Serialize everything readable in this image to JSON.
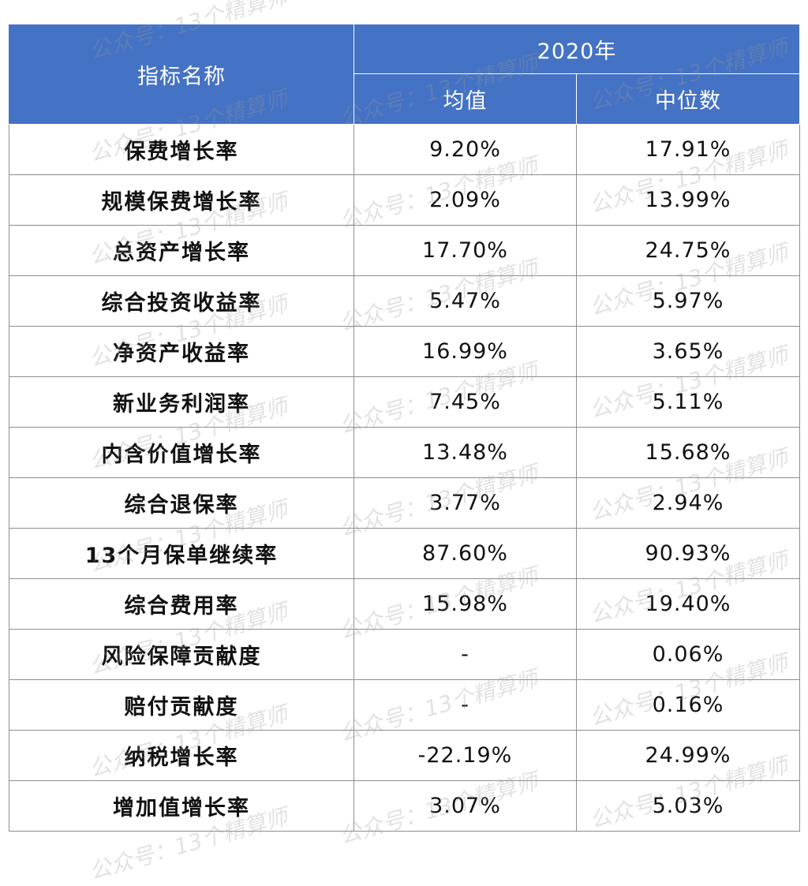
{
  "table": {
    "header": {
      "name_col": "指标名称",
      "year": "2020年",
      "mean": "均值",
      "median": "中位数"
    },
    "rows": [
      {
        "name": "保费增长率",
        "mean": "9.20%",
        "median": "17.91%"
      },
      {
        "name": "规模保费增长率",
        "mean": "2.09%",
        "median": "13.99%"
      },
      {
        "name": "总资产增长率",
        "mean": "17.70%",
        "median": "24.75%"
      },
      {
        "name": "综合投资收益率",
        "mean": "5.47%",
        "median": "5.97%"
      },
      {
        "name": "净资产收益率",
        "mean": "16.99%",
        "median": "3.65%"
      },
      {
        "name": "新业务利润率",
        "mean": "7.45%",
        "median": "5.11%"
      },
      {
        "name": "内含价值增长率",
        "mean": "13.48%",
        "median": "15.68%"
      },
      {
        "name": "综合退保率",
        "mean": "3.77%",
        "median": "2.94%"
      },
      {
        "name": "13个月保单继续率",
        "mean": "87.60%",
        "median": "90.93%"
      },
      {
        "name": "综合费用率",
        "mean": "15.98%",
        "median": "19.40%"
      },
      {
        "name": "风险保障贡献度",
        "mean": "-",
        "median": "0.06%"
      },
      {
        "name": "赔付贡献度",
        "mean": "-",
        "median": "0.16%"
      },
      {
        "name": "纳税增长率",
        "mean": "-22.19%",
        "median": "24.99%"
      },
      {
        "name": "增加值增长率",
        "mean": "3.07%",
        "median": "5.03%"
      }
    ]
  },
  "watermark": {
    "text": "公众号：13个精算师"
  },
  "colors": {
    "header_bg": "#4472c4",
    "header_text": "#ffffff",
    "grid": "#8e8e8e"
  }
}
